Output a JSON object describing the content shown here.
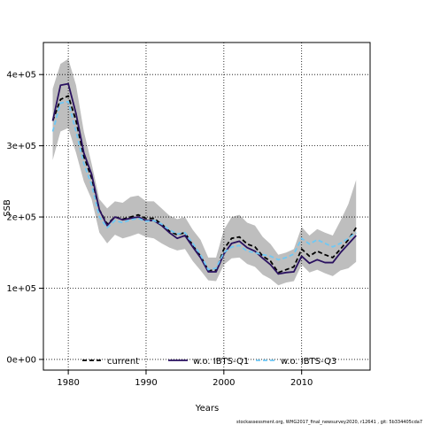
{
  "chart_data": {
    "type": "line",
    "xlabel": "Years",
    "ylabel": "SSB",
    "xlim": [
      1976.8,
      2018.8
    ],
    "ylim": [
      -15000,
      445000
    ],
    "x_ticks": [
      {
        "value": 1980,
        "label": "1980"
      },
      {
        "value": 1990,
        "label": "1990"
      },
      {
        "value": 2000,
        "label": "2000"
      },
      {
        "value": 2010,
        "label": "2010"
      }
    ],
    "y_ticks": [
      {
        "value": 0,
        "label": "0e+00"
      },
      {
        "value": 100000,
        "label": "1e+05"
      },
      {
        "value": 200000,
        "label": "2e+05"
      },
      {
        "value": 300000,
        "label": "3e+05"
      },
      {
        "value": 400000,
        "label": "4e+05"
      }
    ],
    "grid": true,
    "legend_position": "bottom",
    "x": [
      1978,
      1979,
      1980,
      1981,
      1982,
      1983,
      1984,
      1985,
      1986,
      1987,
      1988,
      1989,
      1990,
      1991,
      1992,
      1993,
      1994,
      1995,
      1996,
      1997,
      1998,
      1999,
      2000,
      2001,
      2002,
      2003,
      2004,
      2005,
      2006,
      2007,
      2008,
      2009,
      2010,
      2011,
      2012,
      2013,
      2014,
      2015,
      2016,
      2017
    ],
    "series": [
      {
        "name": "current",
        "color": "#000000",
        "dash": "5,3",
        "values": [
          335000,
          365000,
          370000,
          335000,
          285000,
          255000,
          210000,
          190000,
          200000,
          197000,
          200000,
          203000,
          198000,
          198000,
          190000,
          180000,
          175000,
          178000,
          160000,
          145000,
          125000,
          125000,
          155000,
          170000,
          172000,
          162000,
          158000,
          145000,
          138000,
          122000,
          126000,
          130000,
          155000,
          145000,
          152000,
          147000,
          143000,
          155000,
          168000,
          185000
        ]
      },
      {
        "name": "w.o. IBTS-Q1",
        "color": "#2a1160",
        "dash": "",
        "values": [
          335000,
          385000,
          387000,
          345000,
          290000,
          260000,
          210000,
          188000,
          200000,
          196000,
          198000,
          200000,
          195000,
          195000,
          188000,
          178000,
          170000,
          174000,
          158000,
          143000,
          123000,
          123000,
          148000,
          163000,
          166000,
          157000,
          152000,
          142000,
          133000,
          120000,
          122000,
          123000,
          145000,
          135000,
          140000,
          136000,
          136000,
          150000,
          162000,
          174000
        ]
      },
      {
        "name": "w.o. IBTS-Q3",
        "color": "#6ec8f5",
        "dash": "5,3",
        "values": [
          320000,
          360000,
          362000,
          320000,
          275000,
          245000,
          200000,
          185000,
          195000,
          192000,
          196000,
          198000,
          194000,
          195000,
          190000,
          182000,
          176000,
          178000,
          163000,
          147000,
          126000,
          128000,
          150000,
          158000,
          160000,
          152000,
          150000,
          147000,
          145000,
          140000,
          143000,
          148000,
          170000,
          162000,
          168000,
          163000,
          158000,
          163000,
          170000,
          178000
        ]
      }
    ],
    "confidence_band": {
      "color": "#bebebe",
      "upper": [
        380000,
        415000,
        422000,
        385000,
        320000,
        275000,
        225000,
        212000,
        222000,
        220000,
        228000,
        230000,
        222000,
        222000,
        212000,
        202000,
        197000,
        200000,
        182000,
        168000,
        143000,
        143000,
        182000,
        200000,
        203000,
        192000,
        188000,
        172000,
        162000,
        147000,
        150000,
        155000,
        186000,
        174000,
        183000,
        178000,
        174000,
        195000,
        218000,
        252000
      ],
      "lower": [
        280000,
        320000,
        325000,
        290000,
        250000,
        225000,
        178000,
        163000,
        175000,
        170000,
        173000,
        177000,
        172000,
        170000,
        163000,
        157000,
        153000,
        155000,
        138000,
        125000,
        111000,
        110000,
        133000,
        142000,
        143000,
        134000,
        130000,
        119000,
        113000,
        104000,
        108000,
        110000,
        133000,
        122000,
        126000,
        121000,
        117000,
        125000,
        128000,
        137000
      ]
    },
    "footer": "stockassessment.org, WHG2017_final_newsurvey2020, r12641 , git: 5b334405cda7"
  }
}
